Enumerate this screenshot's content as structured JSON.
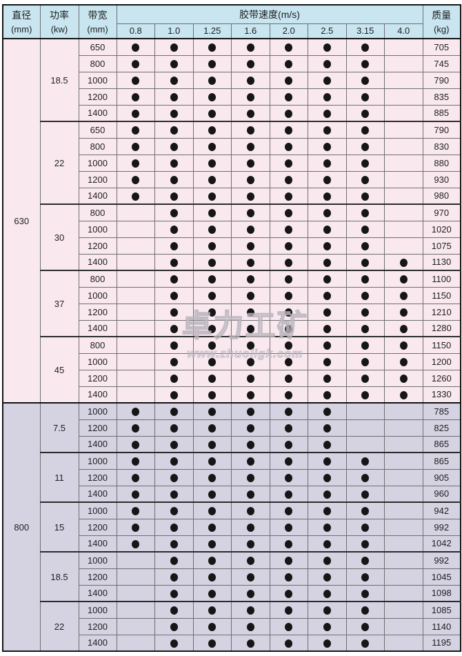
{
  "header": {
    "diameter": {
      "label": "直径",
      "unit": "(mm)"
    },
    "power": {
      "label": "功率",
      "unit": "(kw)"
    },
    "belt_width": {
      "label": "带宽",
      "unit": "(mm)"
    },
    "speed_group_label": "胶带速度(m/s)",
    "speed_columns": [
      "0.8",
      "1.0",
      "1.25",
      "1.6",
      "2.0",
      "2.5",
      "3.15",
      "4.0"
    ],
    "mass": {
      "label": "质量",
      "unit": "(kg)"
    }
  },
  "watermark": {
    "logo_text": "卓力工矿",
    "site_text": "www.zhuoligk.com"
  },
  "colors": {
    "header_bg": "#c8e5f0",
    "section_630_bg": "#f9e9ee",
    "section_800_bg": "#d5d2e2",
    "dot": "#161616",
    "border": "#141414"
  },
  "sections": [
    {
      "diameter": "630",
      "groups": [
        {
          "power": "18.5",
          "rows": [
            {
              "width": "650",
              "dots": [
                1,
                1,
                1,
                1,
                1,
                1,
                1,
                0
              ],
              "mass": "705"
            },
            {
              "width": "800",
              "dots": [
                1,
                1,
                1,
                1,
                1,
                1,
                1,
                0
              ],
              "mass": "745"
            },
            {
              "width": "1000",
              "dots": [
                1,
                1,
                1,
                1,
                1,
                1,
                1,
                0
              ],
              "mass": "790"
            },
            {
              "width": "1200",
              "dots": [
                1,
                1,
                1,
                1,
                1,
                1,
                1,
                0
              ],
              "mass": "835"
            },
            {
              "width": "1400",
              "dots": [
                1,
                1,
                1,
                1,
                1,
                1,
                1,
                0
              ],
              "mass": "885"
            }
          ]
        },
        {
          "power": "22",
          "rows": [
            {
              "width": "650",
              "dots": [
                1,
                1,
                1,
                1,
                1,
                1,
                1,
                0
              ],
              "mass": "790"
            },
            {
              "width": "800",
              "dots": [
                1,
                1,
                1,
                1,
                1,
                1,
                1,
                0
              ],
              "mass": "830"
            },
            {
              "width": "1000",
              "dots": [
                1,
                1,
                1,
                1,
                1,
                1,
                1,
                0
              ],
              "mass": "880"
            },
            {
              "width": "1200",
              "dots": [
                1,
                1,
                1,
                1,
                1,
                1,
                1,
                0
              ],
              "mass": "930"
            },
            {
              "width": "1400",
              "dots": [
                1,
                1,
                1,
                1,
                1,
                1,
                1,
                0
              ],
              "mass": "980"
            }
          ]
        },
        {
          "power": "30",
          "rows": [
            {
              "width": "800",
              "dots": [
                0,
                1,
                1,
                1,
                1,
                1,
                1,
                0
              ],
              "mass": "970"
            },
            {
              "width": "1000",
              "dots": [
                0,
                1,
                1,
                1,
                1,
                1,
                1,
                0
              ],
              "mass": "1020"
            },
            {
              "width": "1200",
              "dots": [
                0,
                1,
                1,
                1,
                1,
                1,
                1,
                0
              ],
              "mass": "1075"
            },
            {
              "width": "1400",
              "dots": [
                0,
                1,
                1,
                1,
                1,
                1,
                1,
                1
              ],
              "mass": "1130"
            }
          ]
        },
        {
          "power": "37",
          "rows": [
            {
              "width": "800",
              "dots": [
                0,
                1,
                1,
                1,
                1,
                1,
                1,
                1
              ],
              "mass": "1100"
            },
            {
              "width": "1000",
              "dots": [
                0,
                1,
                1,
                1,
                1,
                1,
                1,
                1
              ],
              "mass": "1150"
            },
            {
              "width": "1200",
              "dots": [
                0,
                1,
                1,
                1,
                1,
                1,
                1,
                1
              ],
              "mass": "1210"
            },
            {
              "width": "1400",
              "dots": [
                0,
                1,
                1,
                1,
                1,
                1,
                1,
                1
              ],
              "mass": "1280"
            }
          ]
        },
        {
          "power": "45",
          "rows": [
            {
              "width": "800",
              "dots": [
                0,
                1,
                1,
                1,
                1,
                1,
                1,
                1
              ],
              "mass": "1150"
            },
            {
              "width": "1000",
              "dots": [
                0,
                1,
                1,
                1,
                1,
                1,
                1,
                1
              ],
              "mass": "1200"
            },
            {
              "width": "1200",
              "dots": [
                0,
                1,
                1,
                1,
                1,
                1,
                1,
                1
              ],
              "mass": "1260"
            },
            {
              "width": "1400",
              "dots": [
                0,
                1,
                1,
                1,
                1,
                1,
                1,
                1
              ],
              "mass": "1330"
            }
          ]
        }
      ]
    },
    {
      "diameter": "800",
      "groups": [
        {
          "power": "7.5",
          "rows": [
            {
              "width": "1000",
              "dots": [
                1,
                1,
                1,
                1,
                1,
                1,
                0,
                0
              ],
              "mass": "785"
            },
            {
              "width": "1200",
              "dots": [
                1,
                1,
                1,
                1,
                1,
                1,
                0,
                0
              ],
              "mass": "825"
            },
            {
              "width": "1400",
              "dots": [
                1,
                1,
                1,
                1,
                1,
                1,
                0,
                0
              ],
              "mass": "865"
            }
          ]
        },
        {
          "power": "11",
          "rows": [
            {
              "width": "1000",
              "dots": [
                1,
                1,
                1,
                1,
                1,
                1,
                1,
                0
              ],
              "mass": "865"
            },
            {
              "width": "1200",
              "dots": [
                1,
                1,
                1,
                1,
                1,
                1,
                1,
                0
              ],
              "mass": "905"
            },
            {
              "width": "1400",
              "dots": [
                1,
                1,
                1,
                1,
                1,
                1,
                1,
                0
              ],
              "mass": "960"
            }
          ]
        },
        {
          "power": "15",
          "rows": [
            {
              "width": "1000",
              "dots": [
                1,
                1,
                1,
                1,
                1,
                1,
                1,
                0
              ],
              "mass": "942"
            },
            {
              "width": "1200",
              "dots": [
                1,
                1,
                1,
                1,
                1,
                1,
                1,
                0
              ],
              "mass": "992"
            },
            {
              "width": "1400",
              "dots": [
                1,
                1,
                1,
                1,
                1,
                1,
                1,
                0
              ],
              "mass": "1042"
            }
          ]
        },
        {
          "power": "18.5",
          "rows": [
            {
              "width": "1000",
              "dots": [
                0,
                1,
                1,
                1,
                1,
                1,
                1,
                0
              ],
              "mass": "992"
            },
            {
              "width": "1200",
              "dots": [
                0,
                1,
                1,
                1,
                1,
                1,
                1,
                0
              ],
              "mass": "1045"
            },
            {
              "width": "1400",
              "dots": [
                0,
                1,
                1,
                1,
                1,
                1,
                1,
                0
              ],
              "mass": "1098"
            }
          ]
        },
        {
          "power": "22",
          "rows": [
            {
              "width": "1000",
              "dots": [
                0,
                1,
                1,
                1,
                1,
                1,
                1,
                0
              ],
              "mass": "1085"
            },
            {
              "width": "1200",
              "dots": [
                0,
                1,
                1,
                1,
                1,
                1,
                1,
                0
              ],
              "mass": "1140"
            },
            {
              "width": "1400",
              "dots": [
                0,
                1,
                1,
                1,
                1,
                1,
                1,
                0
              ],
              "mass": "1195"
            }
          ]
        }
      ]
    }
  ]
}
